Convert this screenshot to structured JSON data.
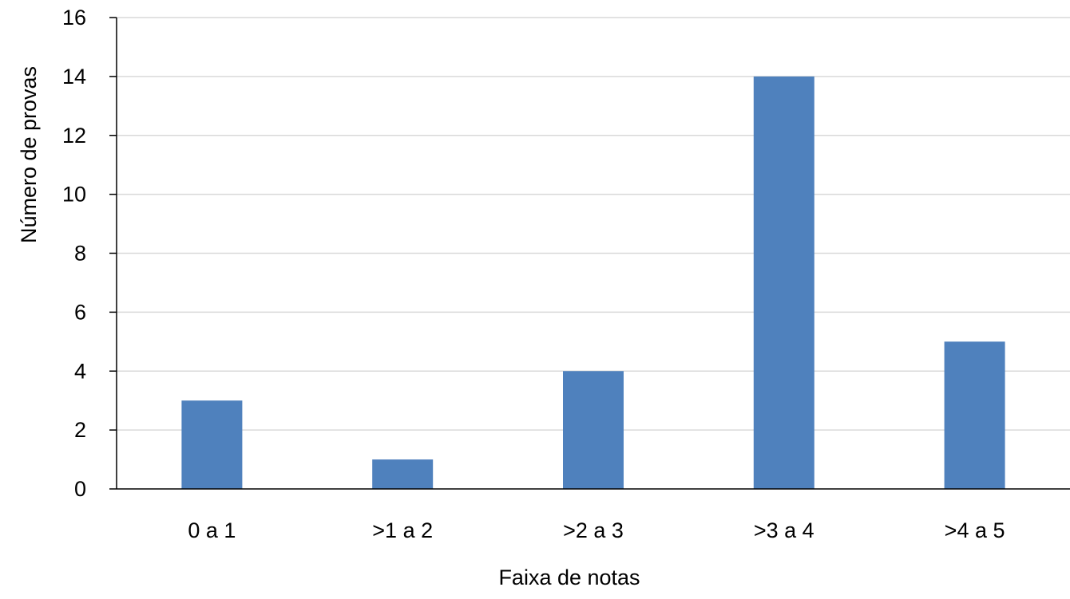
{
  "chart_data": {
    "type": "bar",
    "title": "",
    "xlabel": "Faixa de notas",
    "ylabel": "Número de provas",
    "categories": [
      "0 a 1",
      ">1 a 2",
      ">2 a 3",
      ">3 a 4",
      ">4 a 5"
    ],
    "values": [
      3,
      1,
      4,
      14,
      5
    ],
    "ylim": [
      0,
      16
    ],
    "yticks": [
      0,
      2,
      4,
      6,
      8,
      10,
      12,
      14,
      16
    ],
    "grid": true,
    "legend": "none",
    "bar_color": "#4f81bd"
  }
}
